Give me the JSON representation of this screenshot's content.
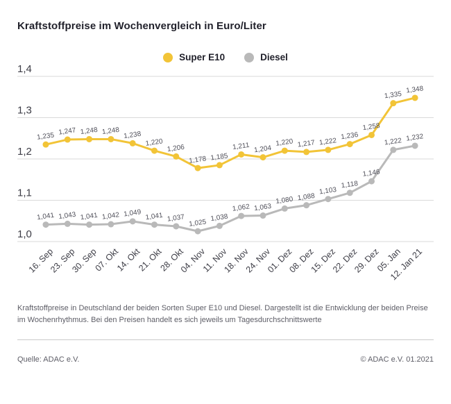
{
  "page": {
    "title": "Kraftstoffpreise im Wochenvergleich in Euro/Liter",
    "description": "Kraftstoffpreise in Deutschland der beiden Sorten Super E10 und Diesel. Dargestellt ist die Entwicklung der beiden Preise im Wochenrhythmus. Bei den Preisen handelt es sich jeweils um Tagesdurchschnittswerte",
    "source": "Quelle: ADAC e.V.",
    "copyright": "© ADAC e.V. 01.2021"
  },
  "colors": {
    "super_e10": "#F2C437",
    "diesel": "#B9B9B9",
    "grid": "#d9d9d9",
    "tick_text": "#3d3d46",
    "value_label_text": "#50505a",
    "axis_label_text": "#3d3d46"
  },
  "chart_data": {
    "type": "line",
    "title": "Kraftstoffpreise im Wochenvergleich in Euro/Liter",
    "categories": [
      "16. Sep",
      "23. Sep",
      "30. Sep",
      "07. Okt",
      "14. Okt",
      "21. Okt",
      "28. Okt",
      "04. Nov",
      "11. Nov",
      "18. Nov",
      "24. Nov",
      "01. Dez",
      "08. Dez",
      "15. Dez",
      "22. Dez",
      "29. Dez",
      "05. Jan",
      "12. Jan 21"
    ],
    "series": [
      {
        "name": "Diesel",
        "color": "#B9B9B9",
        "values": [
          1.041,
          1.043,
          1.041,
          1.042,
          1.049,
          1.041,
          1.037,
          1.025,
          1.038,
          1.062,
          1.063,
          1.08,
          1.088,
          1.103,
          1.118,
          1.146,
          1.222,
          1.232
        ]
      },
      {
        "name": "Super E10",
        "color": "#F2C437",
        "values": [
          1.235,
          1.247,
          1.248,
          1.248,
          1.238,
          1.22,
          1.206,
          1.178,
          1.185,
          1.211,
          1.204,
          1.22,
          1.217,
          1.222,
          1.236,
          1.258,
          1.335,
          1.348
        ]
      }
    ],
    "ylim": [
      1.0,
      1.4
    ],
    "yticks": [
      1.0,
      1.1,
      1.2,
      1.3,
      1.4
    ],
    "ytick_labels": [
      "1,0",
      "1,1",
      "1,2",
      "1,3",
      "1,4"
    ],
    "xlabel": "",
    "ylabel": "",
    "grid": true,
    "legend_position": "top-center",
    "value_labels": "above-points, German decimal comma, 3 decimals"
  }
}
